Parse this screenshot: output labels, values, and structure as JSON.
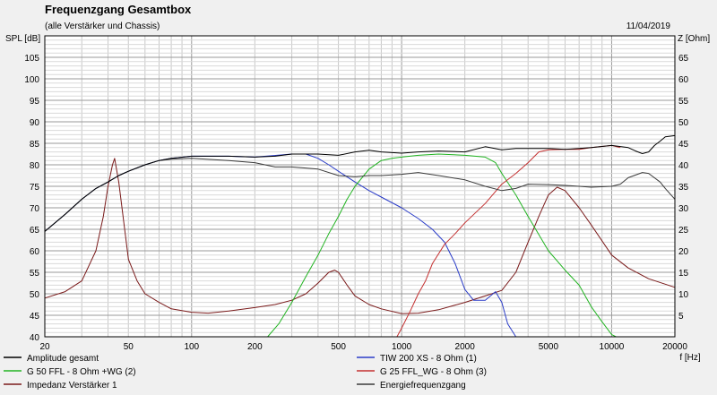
{
  "chart_data": {
    "type": "line",
    "title": "Frequenzgang Gesamtbox",
    "subtitle": "(alle Verstärker und Chassis)",
    "date": "11/04/2019",
    "ylabel_left": "SPL [dB]",
    "ylabel_right": "Z [Ohm]",
    "xlabel": "f [Hz]",
    "x_scale": "log",
    "xlim": [
      20,
      20000
    ],
    "ylim_left": [
      40,
      110
    ],
    "ylim_right": [
      0,
      70
    ],
    "grid": true,
    "x_ticks": [
      {
        "value": 20,
        "label": "20"
      },
      {
        "value": 50,
        "label": "50"
      },
      {
        "value": 100,
        "label": "100"
      },
      {
        "value": 200,
        "label": "200"
      },
      {
        "value": 500,
        "label": "500"
      },
      {
        "value": 1000,
        "label": "1000"
      },
      {
        "value": 2000,
        "label": "2000"
      },
      {
        "value": 5000,
        "label": "5000"
      },
      {
        "value": 10000,
        "label": "10000"
      },
      {
        "value": 20000,
        "label": "20000"
      }
    ],
    "y_left_ticks": [
      "40",
      "45",
      "50",
      "55",
      "60",
      "65",
      "70",
      "75",
      "80",
      "85",
      "90",
      "95",
      "100",
      "105"
    ],
    "y_right_ticks": [
      "5",
      "10",
      "15",
      "20",
      "25",
      "30",
      "35",
      "40",
      "45",
      "50",
      "55",
      "60",
      "65"
    ],
    "series": [
      {
        "name": "Amplitude gesamt",
        "color": "#000000",
        "axis": "left",
        "points": [
          [
            20,
            64.5
          ],
          [
            25,
            68.5
          ],
          [
            30,
            72
          ],
          [
            35,
            74.5
          ],
          [
            40,
            76
          ],
          [
            45,
            77.5
          ],
          [
            50,
            78.5
          ],
          [
            60,
            80
          ],
          [
            70,
            81
          ],
          [
            80,
            81.5
          ],
          [
            100,
            82
          ],
          [
            150,
            82
          ],
          [
            200,
            81.8
          ],
          [
            250,
            82
          ],
          [
            300,
            82.5
          ],
          [
            350,
            82.5
          ],
          [
            400,
            82.5
          ],
          [
            500,
            82.2
          ],
          [
            600,
            83
          ],
          [
            700,
            83.4
          ],
          [
            800,
            83
          ],
          [
            1000,
            82.7
          ],
          [
            1200,
            83
          ],
          [
            1500,
            83.2
          ],
          [
            2000,
            83
          ],
          [
            2500,
            84.2
          ],
          [
            3000,
            83.5
          ],
          [
            3500,
            83.8
          ],
          [
            4000,
            83.8
          ],
          [
            5000,
            83.8
          ],
          [
            6000,
            83.6
          ],
          [
            7000,
            83.8
          ],
          [
            8000,
            84
          ],
          [
            10000,
            84.5
          ],
          [
            12000,
            84
          ],
          [
            13000,
            83.2
          ],
          [
            14000,
            82.6
          ],
          [
            15000,
            83
          ],
          [
            16000,
            84.5
          ],
          [
            17000,
            85.5
          ],
          [
            18000,
            86.5
          ],
          [
            20000,
            86.8
          ]
        ]
      },
      {
        "name": "TIW 200 XS - 8 Ohm (1)",
        "color": "#2a3cc8",
        "axis": "left",
        "points": [
          [
            20,
            64.5
          ],
          [
            25,
            68.5
          ],
          [
            30,
            72
          ],
          [
            35,
            74.5
          ],
          [
            40,
            76
          ],
          [
            45,
            77.5
          ],
          [
            50,
            78.5
          ],
          [
            60,
            80
          ],
          [
            70,
            81
          ],
          [
            80,
            81.5
          ],
          [
            100,
            82
          ],
          [
            150,
            82
          ],
          [
            200,
            81.8
          ],
          [
            300,
            82.5
          ],
          [
            350,
            82.5
          ],
          [
            400,
            81.5
          ],
          [
            450,
            80
          ],
          [
            500,
            78.5
          ],
          [
            600,
            76
          ],
          [
            700,
            74
          ],
          [
            800,
            72.5
          ],
          [
            1000,
            70
          ],
          [
            1200,
            67.5
          ],
          [
            1400,
            65
          ],
          [
            1600,
            62
          ],
          [
            1800,
            57
          ],
          [
            2000,
            51
          ],
          [
            2200,
            48.5
          ],
          [
            2500,
            48.5
          ],
          [
            2800,
            50.5
          ],
          [
            3000,
            48
          ],
          [
            3200,
            43
          ],
          [
            3500,
            40
          ]
        ]
      },
      {
        "name": "G 50 FFL - 8 Ohm +WG (2)",
        "color": "#22b422",
        "axis": "left",
        "points": [
          [
            20,
            40
          ],
          [
            230,
            40
          ],
          [
            260,
            43
          ],
          [
            300,
            48
          ],
          [
            350,
            54
          ],
          [
            400,
            59
          ],
          [
            450,
            64
          ],
          [
            500,
            68
          ],
          [
            550,
            72
          ],
          [
            600,
            75
          ],
          [
            700,
            79
          ],
          [
            800,
            81
          ],
          [
            900,
            81.5
          ],
          [
            1000,
            81.8
          ],
          [
            1200,
            82.2
          ],
          [
            1500,
            82.5
          ],
          [
            2000,
            82.2
          ],
          [
            2500,
            81.8
          ],
          [
            2800,
            80.5
          ],
          [
            3000,
            78
          ],
          [
            3500,
            73
          ],
          [
            4000,
            68
          ],
          [
            5000,
            60
          ],
          [
            6000,
            55.5
          ],
          [
            7000,
            52
          ],
          [
            8000,
            47
          ],
          [
            9000,
            43.5
          ],
          [
            10000,
            40.5
          ],
          [
            10500,
            40
          ]
        ]
      },
      {
        "name": "G 25 FFL_WG - 8 Ohm (3)",
        "color": "#c43030",
        "axis": "left",
        "points": [
          [
            950,
            40
          ],
          [
            1000,
            42
          ],
          [
            1100,
            46
          ],
          [
            1200,
            50
          ],
          [
            1300,
            53
          ],
          [
            1400,
            57
          ],
          [
            1600,
            61.5
          ],
          [
            1800,
            64
          ],
          [
            2000,
            66.5
          ],
          [
            2500,
            71
          ],
          [
            3000,
            75.5
          ],
          [
            3500,
            78
          ],
          [
            4000,
            80.5
          ],
          [
            4500,
            83
          ],
          [
            5000,
            83.5
          ],
          [
            6000,
            83.6
          ],
          [
            7000,
            83.6
          ],
          [
            8000,
            84
          ],
          [
            10000,
            84.5
          ],
          [
            11000,
            84
          ]
        ]
      },
      {
        "name": "Impedanz Verstärker 1",
        "color": "#7a1a1a",
        "axis": "right",
        "points": [
          [
            20,
            9
          ],
          [
            25,
            10.5
          ],
          [
            30,
            13
          ],
          [
            35,
            20
          ],
          [
            38,
            28
          ],
          [
            40,
            35
          ],
          [
            42,
            40
          ],
          [
            43,
            41.5
          ],
          [
            45,
            36
          ],
          [
            48,
            25
          ],
          [
            50,
            18
          ],
          [
            55,
            13
          ],
          [
            60,
            10
          ],
          [
            70,
            8
          ],
          [
            80,
            6.5
          ],
          [
            100,
            5.7
          ],
          [
            120,
            5.5
          ],
          [
            150,
            6
          ],
          [
            200,
            6.8
          ],
          [
            250,
            7.5
          ],
          [
            300,
            8.5
          ],
          [
            350,
            10
          ],
          [
            400,
            12.5
          ],
          [
            450,
            15
          ],
          [
            480,
            15.5
          ],
          [
            500,
            15
          ],
          [
            550,
            12
          ],
          [
            600,
            9.5
          ],
          [
            700,
            7.5
          ],
          [
            800,
            6.5
          ],
          [
            1000,
            5.4
          ],
          [
            1200,
            5.5
          ],
          [
            1500,
            6.3
          ],
          [
            2000,
            8
          ],
          [
            2500,
            9.5
          ],
          [
            3000,
            10.8
          ],
          [
            3500,
            15
          ],
          [
            4000,
            22
          ],
          [
            4500,
            28
          ],
          [
            5000,
            33
          ],
          [
            5500,
            34.8
          ],
          [
            6000,
            34
          ],
          [
            7000,
            30
          ],
          [
            8000,
            26
          ],
          [
            10000,
            19
          ],
          [
            12000,
            16
          ],
          [
            15000,
            13.5
          ],
          [
            20000,
            11.5
          ]
        ]
      },
      {
        "name": "Energiefrequenzgang",
        "color": "#3a3a3a",
        "axis": "left",
        "points": [
          [
            20,
            64.5
          ],
          [
            25,
            68.5
          ],
          [
            30,
            72
          ],
          [
            35,
            74.5
          ],
          [
            40,
            76
          ],
          [
            45,
            77.5
          ],
          [
            50,
            78.5
          ],
          [
            60,
            80
          ],
          [
            70,
            81
          ],
          [
            80,
            81.3
          ],
          [
            100,
            81.5
          ],
          [
            150,
            81
          ],
          [
            200,
            80.5
          ],
          [
            250,
            79.5
          ],
          [
            300,
            79.5
          ],
          [
            400,
            79
          ],
          [
            500,
            77.5
          ],
          [
            600,
            77.2
          ],
          [
            700,
            77.5
          ],
          [
            800,
            77.5
          ],
          [
            1000,
            77.8
          ],
          [
            1200,
            78.2
          ],
          [
            1500,
            77.5
          ],
          [
            2000,
            76.5
          ],
          [
            2500,
            75
          ],
          [
            3000,
            74
          ],
          [
            3500,
            74.5
          ],
          [
            4000,
            75.5
          ],
          [
            5000,
            75.4
          ],
          [
            6000,
            75.2
          ],
          [
            7000,
            75
          ],
          [
            8000,
            74.8
          ],
          [
            10000,
            75
          ],
          [
            11000,
            75.5
          ],
          [
            12000,
            77
          ],
          [
            14000,
            78.2
          ],
          [
            15000,
            78
          ],
          [
            17000,
            76
          ],
          [
            18000,
            74.5
          ],
          [
            20000,
            72
          ]
        ]
      }
    ]
  }
}
